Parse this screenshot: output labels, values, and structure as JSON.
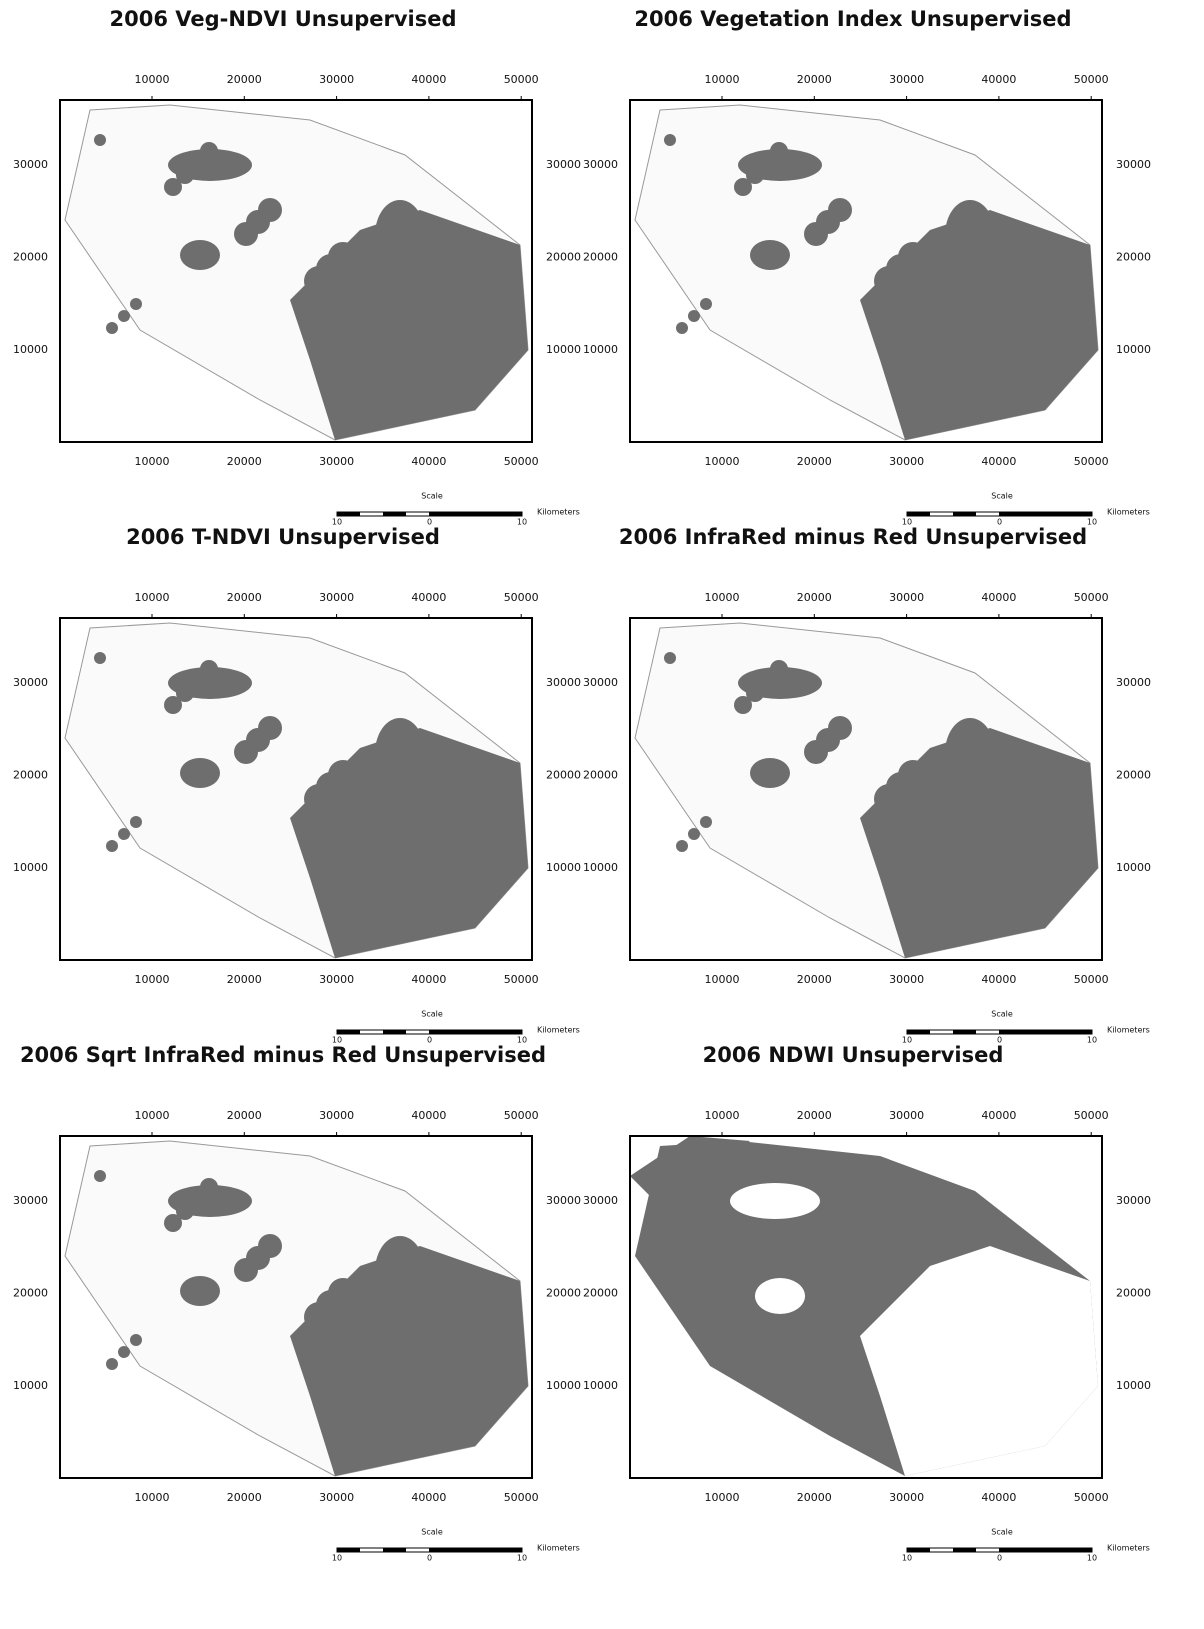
{
  "panels": [
    {
      "title": "2006 Veg-NDVI Unsupervised",
      "x_ticks": [
        10000,
        20000,
        30000,
        40000,
        50000
      ],
      "y_ticks": [
        30000,
        20000,
        10000
      ],
      "scale_label": "Scale",
      "scale_ticks": [
        10,
        0,
        10
      ],
      "scale_unit": "Kilometers"
    },
    {
      "title": "2006 Vegetation Index Unsupervised",
      "x_ticks": [
        10000,
        20000,
        30000,
        40000,
        50000
      ],
      "y_ticks": [
        30000,
        20000,
        10000
      ],
      "scale_label": "Scale",
      "scale_ticks": [
        10,
        0,
        10
      ],
      "scale_unit": "Kilometers"
    },
    {
      "title": "2006 T-NDVI Unsupervised",
      "x_ticks": [
        10000,
        20000,
        30000,
        40000,
        50000
      ],
      "y_ticks": [
        30000,
        20000,
        10000
      ],
      "scale_label": "Scale",
      "scale_ticks": [
        10,
        0,
        10
      ],
      "scale_unit": "Kilometers"
    },
    {
      "title": "2006 InfraRed minus Red Unsupervised",
      "x_ticks": [
        10000,
        20000,
        30000,
        40000,
        50000
      ],
      "y_ticks": [
        30000,
        20000,
        10000
      ],
      "scale_label": "Scale",
      "scale_ticks": [
        10,
        0,
        10
      ],
      "scale_unit": "Kilometers"
    },
    {
      "title": "2006 Sqrt InfraRed minus Red Unsupervised",
      "x_ticks": [
        10000,
        20000,
        30000,
        40000,
        50000
      ],
      "y_ticks": [
        30000,
        20000,
        10000
      ],
      "scale_label": "Scale",
      "scale_ticks": [
        10,
        0,
        10
      ],
      "scale_unit": "Kilometers"
    },
    {
      "title": "2006 NDWI Unsupervised",
      "x_ticks": [
        10000,
        20000,
        30000,
        40000,
        50000
      ],
      "y_ticks": [
        30000,
        20000,
        10000
      ],
      "scale_label": "Scale",
      "scale_ticks": [
        10,
        0,
        10
      ],
      "scale_unit": "Kilometers"
    }
  ]
}
